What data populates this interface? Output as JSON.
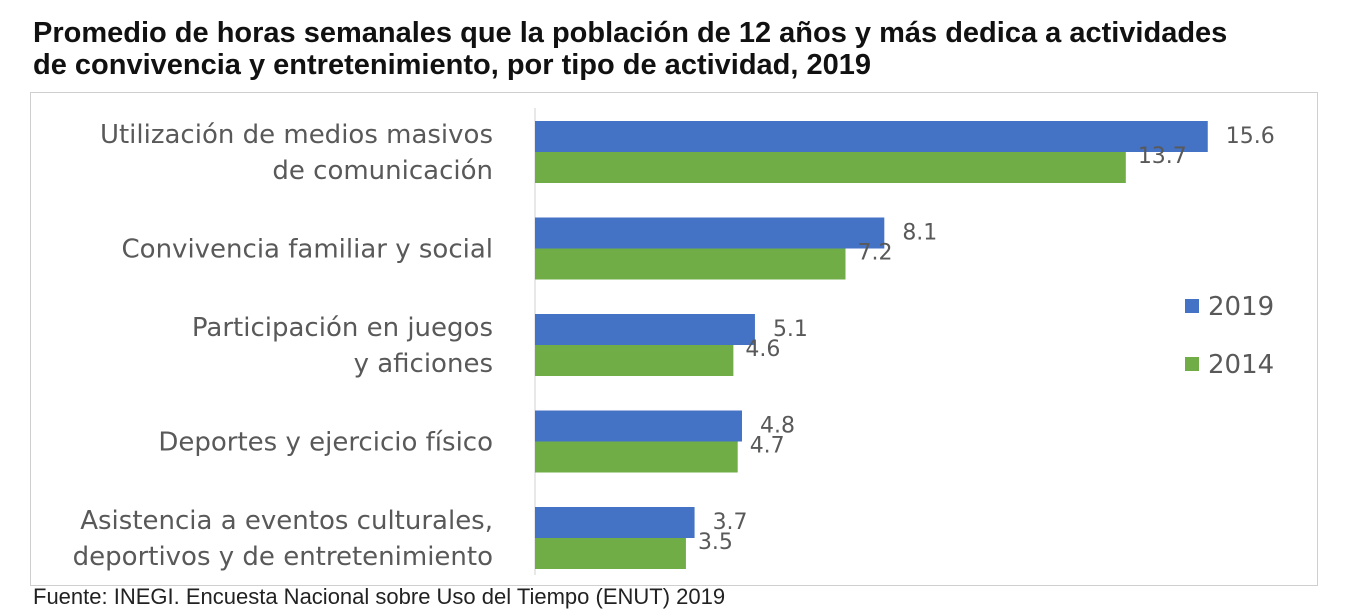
{
  "title_line1": "Promedio de horas semanales que la población de 12 años y más dedica a actividades",
  "title_line2": "de convivencia y entretenimiento, por tipo de actividad, 2019",
  "source": "Fuente: INEGI. Encuesta Nacional sobre Uso del Tiempo (ENUT) 2019",
  "colors": {
    "series_2019": "#4472c4",
    "series_2014": "#70ad47",
    "label_text": "#595959"
  },
  "chart_data": {
    "type": "bar",
    "orientation": "horizontal",
    "title": "Promedio de horas semanales que la población de 12 años y más dedica a actividades de convivencia y entretenimiento, por tipo de actividad, 2019",
    "xlabel": "",
    "ylabel": "",
    "xlim": [
      0,
      16
    ],
    "grid": false,
    "legend_position": "right",
    "categories": [
      [
        "Utilización de medios masivos",
        "de comunicación"
      ],
      [
        "Convivencia familiar y social"
      ],
      [
        "Participación en juegos",
        "y aficiones"
      ],
      [
        "Deportes y ejercicio físico"
      ],
      [
        "Asistencia a eventos culturales,",
        "deportivos y de entretenimiento"
      ]
    ],
    "series": [
      {
        "name": "2019",
        "values": [
          15.6,
          8.1,
          5.1,
          4.8,
          3.7
        ],
        "labels": [
          "15.6",
          "8.1",
          "5.1",
          "4.8",
          "3.7"
        ]
      },
      {
        "name": "2014",
        "values": [
          13.7,
          7.2,
          4.6,
          4.7,
          3.5
        ],
        "labels": [
          "13.7",
          "7.2",
          "4.6",
          "4.7",
          "3.5"
        ]
      }
    ]
  }
}
